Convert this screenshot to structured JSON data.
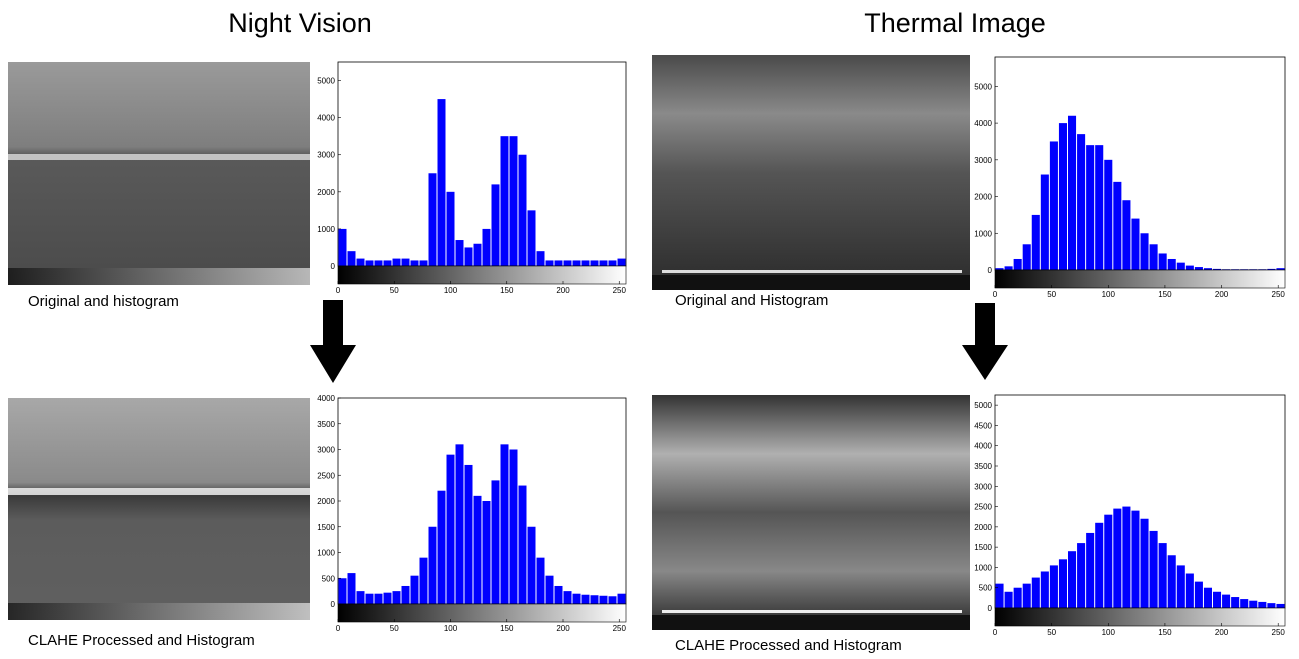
{
  "headings": [
    "Night Vision",
    "Thermal Image"
  ],
  "chart_data": [
    {
      "type": "histogram",
      "caption": "Original and histogram",
      "color": "#0000ff",
      "bins": [
        0,
        8,
        16,
        24,
        32,
        40,
        48,
        56,
        64,
        72,
        80,
        88,
        96,
        104,
        112,
        120,
        128,
        136,
        144,
        152,
        160,
        168,
        176,
        184,
        192,
        200,
        208,
        216,
        224,
        232,
        240,
        248,
        256
      ],
      "values": [
        1000,
        400,
        200,
        150,
        150,
        150,
        200,
        200,
        150,
        150,
        2500,
        4500,
        2000,
        700,
        500,
        600,
        1000,
        2200,
        3500,
        3500,
        3000,
        1500,
        400,
        150,
        150,
        150,
        150,
        150,
        150,
        150,
        150,
        200
      ],
      "xlim": [
        0,
        256
      ],
      "xticks": [
        0,
        50,
        100,
        150,
        200,
        250
      ],
      "ylim": [
        0,
        5500
      ],
      "yticks": [
        0,
        1000,
        2000,
        3000,
        4000,
        5000
      ]
    },
    {
      "type": "histogram",
      "caption": "CLAHE Processed and Histogram",
      "color": "#0000ff",
      "bins": [
        0,
        8,
        16,
        24,
        32,
        40,
        48,
        56,
        64,
        72,
        80,
        88,
        96,
        104,
        112,
        120,
        128,
        136,
        144,
        152,
        160,
        168,
        176,
        184,
        192,
        200,
        208,
        216,
        224,
        232,
        240,
        248,
        256
      ],
      "values": [
        500,
        600,
        250,
        200,
        200,
        220,
        250,
        350,
        550,
        900,
        1500,
        2200,
        2900,
        3100,
        2700,
        2100,
        2000,
        2400,
        3100,
        3000,
        2300,
        1500,
        900,
        550,
        350,
        250,
        200,
        180,
        170,
        160,
        150,
        200
      ],
      "xlim": [
        0,
        256
      ],
      "xticks": [
        0,
        50,
        100,
        150,
        200,
        250
      ],
      "ylim": [
        0,
        4000
      ],
      "yticks": [
        0,
        500,
        1000,
        1500,
        2000,
        2500,
        3000,
        3500,
        4000
      ]
    },
    {
      "type": "histogram",
      "caption": "Original and Histogram",
      "color": "#0000ff",
      "bins": [
        0,
        8,
        16,
        24,
        32,
        40,
        48,
        56,
        64,
        72,
        80,
        88,
        96,
        104,
        112,
        120,
        128,
        136,
        144,
        152,
        160,
        168,
        176,
        184,
        192,
        200,
        208,
        216,
        224,
        232,
        240,
        248,
        256
      ],
      "values": [
        50,
        100,
        300,
        700,
        1500,
        2600,
        3500,
        4000,
        4200,
        3700,
        3400,
        3400,
        3000,
        2400,
        1900,
        1400,
        1000,
        700,
        450,
        300,
        200,
        120,
        80,
        50,
        30,
        20,
        20,
        20,
        20,
        20,
        30,
        50
      ],
      "xlim": [
        0,
        256
      ],
      "xticks": [
        0,
        50,
        100,
        150,
        200,
        250
      ],
      "ylim": [
        0,
        5800
      ],
      "yticks": [
        0,
        1000,
        2000,
        3000,
        4000,
        5000
      ]
    },
    {
      "type": "histogram",
      "caption": "CLAHE Processed and Histogram",
      "color": "#0000ff",
      "bins": [
        0,
        8,
        16,
        24,
        32,
        40,
        48,
        56,
        64,
        72,
        80,
        88,
        96,
        104,
        112,
        120,
        128,
        136,
        144,
        152,
        160,
        168,
        176,
        184,
        192,
        200,
        208,
        216,
        224,
        232,
        240,
        248,
        256
      ],
      "values": [
        600,
        400,
        500,
        600,
        750,
        900,
        1050,
        1200,
        1400,
        1600,
        1850,
        2100,
        2300,
        2450,
        2500,
        2400,
        2200,
        1900,
        1600,
        1300,
        1050,
        850,
        650,
        500,
        400,
        330,
        270,
        220,
        180,
        150,
        120,
        100
      ],
      "xlim": [
        0,
        256
      ],
      "xticks": [
        0,
        50,
        100,
        150,
        200,
        250
      ],
      "ylim": [
        0,
        5250
      ],
      "yticks": [
        0,
        500,
        1000,
        1500,
        2000,
        2500,
        3000,
        3500,
        4000,
        4500,
        5000
      ]
    }
  ]
}
